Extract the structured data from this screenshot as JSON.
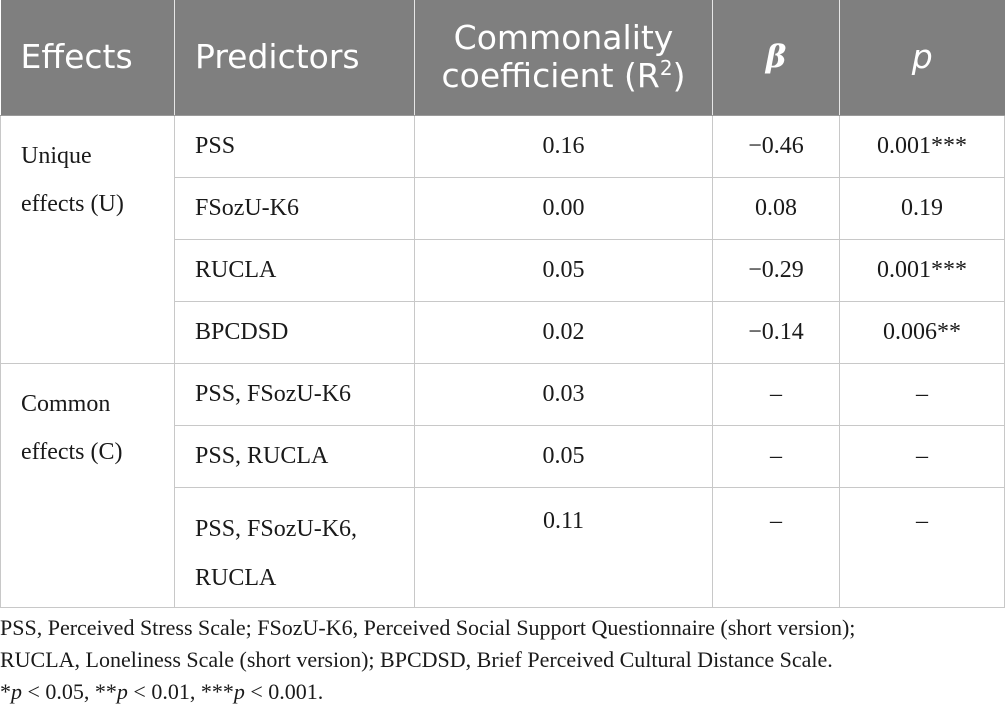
{
  "table": {
    "headers": {
      "effects": "Effects",
      "predictors": "Predictors",
      "commonality_line1": "Commonality",
      "commonality_line2": "coefficient (R",
      "commonality_sup": "2",
      "commonality_close": ")",
      "beta": "β",
      "p": "p"
    },
    "groups": [
      {
        "label_line1": "Unique",
        "label_line2": "effects (U)",
        "rows": [
          {
            "predictor": "PSS",
            "coefficient": "0.16",
            "beta": "−0.46",
            "p": "0.001***"
          },
          {
            "predictor": "FSozU-K6",
            "coefficient": "0.00",
            "beta": "0.08",
            "p": "0.19"
          },
          {
            "predictor": "RUCLA",
            "coefficient": "0.05",
            "beta": "−0.29",
            "p": "0.001***"
          },
          {
            "predictor": "BPCDSD",
            "coefficient": "0.02",
            "beta": "−0.14",
            "p": "0.006**"
          }
        ]
      },
      {
        "label_line1": "Common",
        "label_line2": "effects (C)",
        "rows": [
          {
            "predictor": "PSS, FSozU-K6",
            "coefficient": "0.03",
            "beta": "–",
            "p": "–"
          },
          {
            "predictor": "PSS, RUCLA",
            "coefficient": "0.05",
            "beta": "–",
            "p": "–"
          },
          {
            "predictor_line1": "PSS, FSozU-K6,",
            "predictor_line2": "RUCLA",
            "coefficient": "0.11",
            "beta": "–",
            "p": "–"
          }
        ]
      }
    ]
  },
  "notes": {
    "line1": "PSS, Perceived Stress Scale; FSozU-K6, Perceived Social Support Questionnaire (short version);",
    "line2": "RUCLA, Loneliness Scale (short version); BPCDSD, Brief Perceived Cultural Distance Scale.",
    "sig": {
      "p1": "p",
      "t1": " < 0.05, **",
      "p2": "p",
      "t2": " < 0.01, ***",
      "p3": "p",
      "t3": " < 0.001.",
      "star1": "*"
    }
  }
}
